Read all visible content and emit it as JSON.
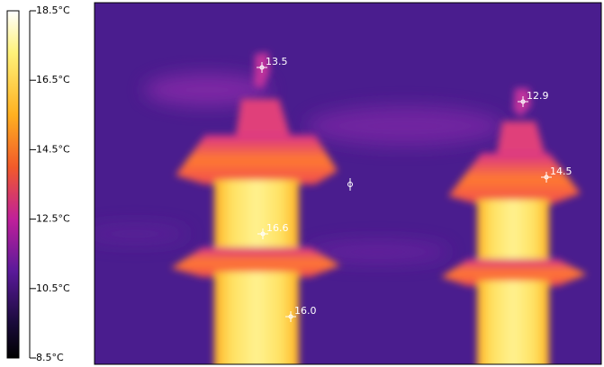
{
  "scale": {
    "labels": [
      "18.5°C",
      "16.5°C",
      "14.5°C",
      "12.5°C",
      "10.5°C",
      "8.5°C"
    ]
  },
  "spots": [
    {
      "label": "13.5"
    },
    {
      "label": "12.9"
    },
    {
      "label": "14.5"
    },
    {
      "label": "16.6"
    },
    {
      "label": "16.0"
    }
  ]
}
